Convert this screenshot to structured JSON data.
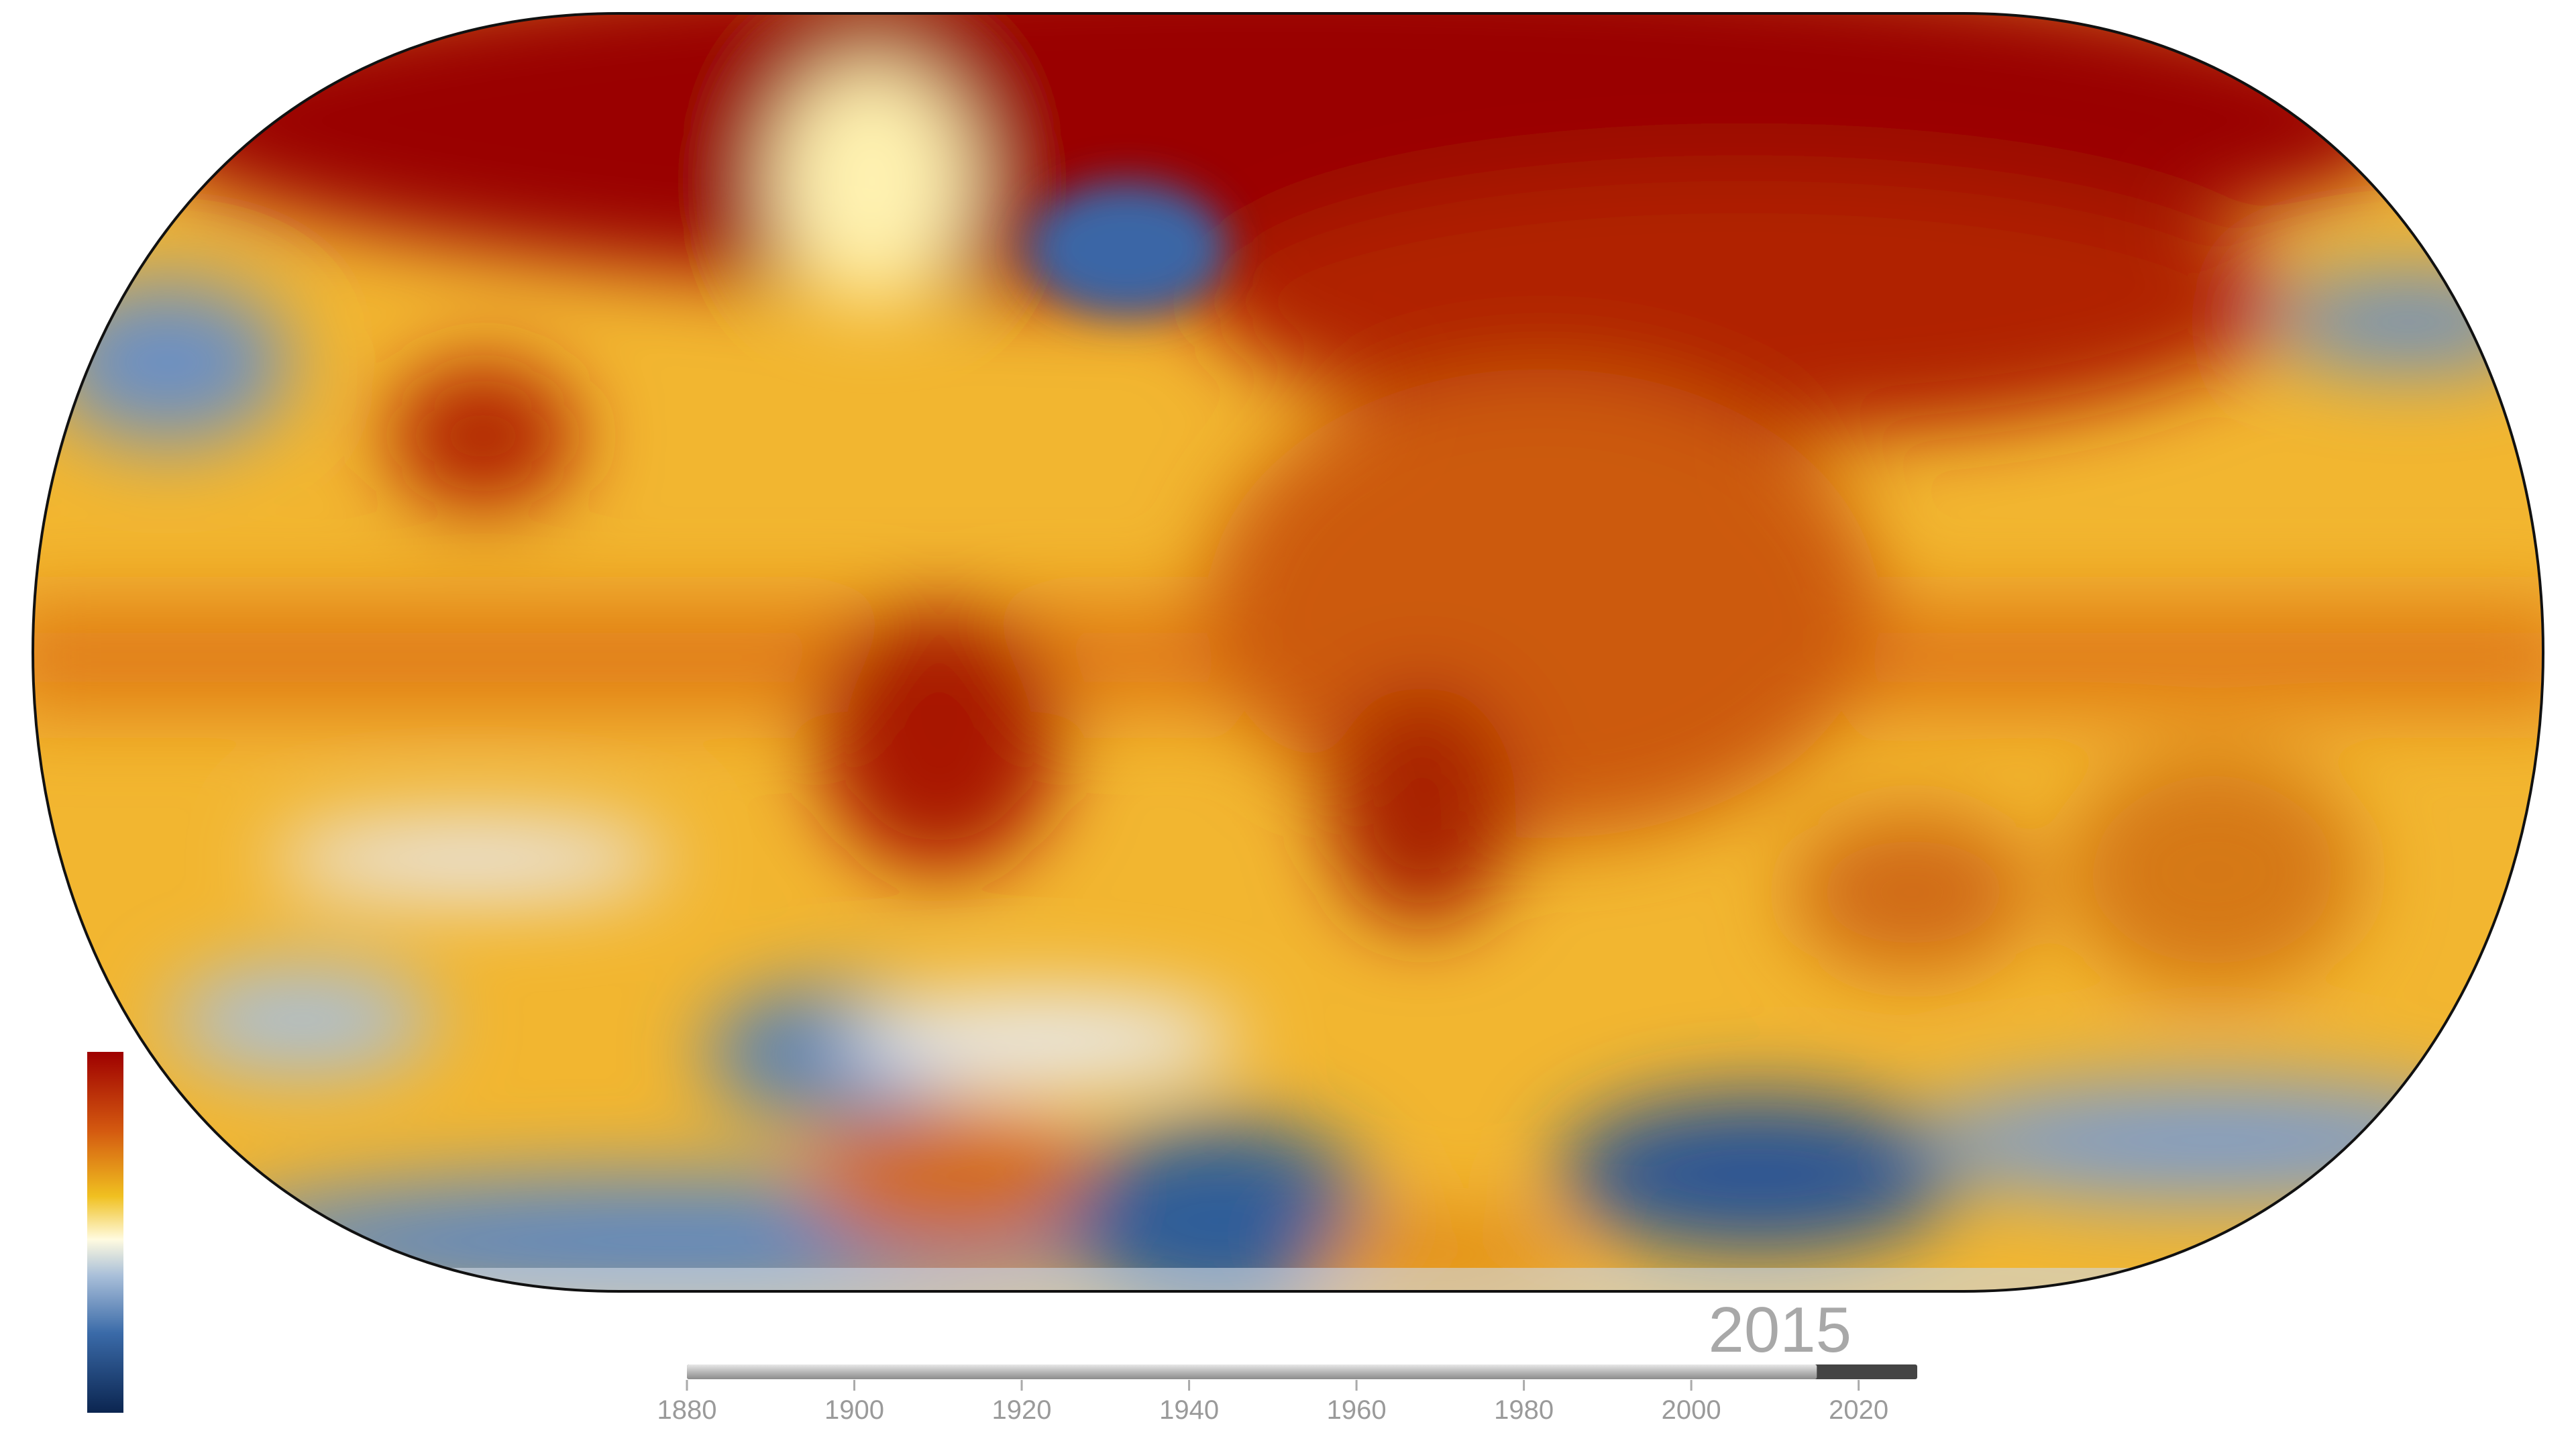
{
  "year": 2015,
  "timeline": {
    "xlim": [
      1880,
      2027
    ],
    "xticks": [
      1880,
      1900,
      1920,
      1940,
      1960,
      1980,
      2000,
      2020
    ]
  }
}
